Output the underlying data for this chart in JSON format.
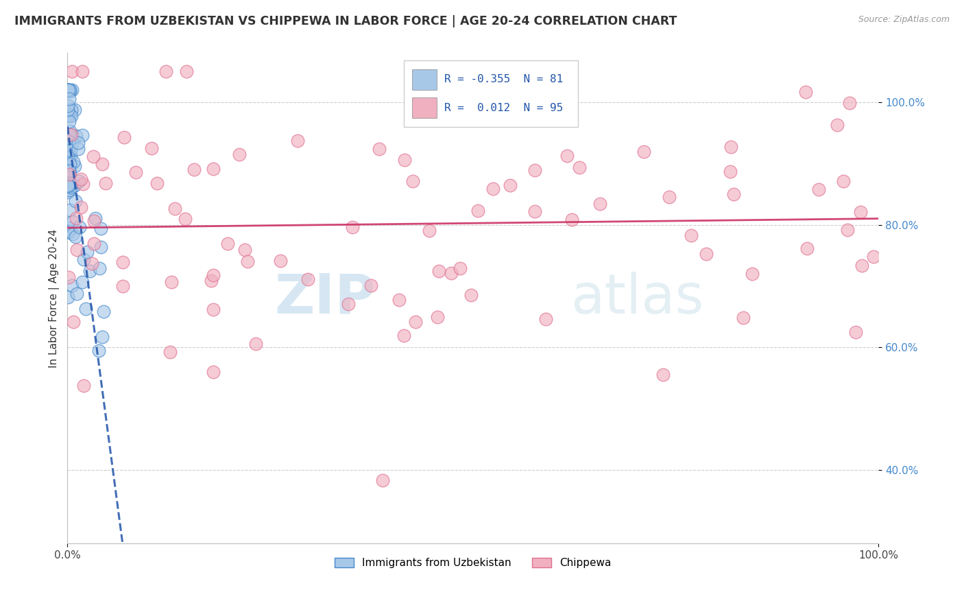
{
  "title": "IMMIGRANTS FROM UZBEKISTAN VS CHIPPEWA IN LABOR FORCE | AGE 20-24 CORRELATION CHART",
  "source": "Source: ZipAtlas.com",
  "ylabel": "In Labor Force | Age 20-24",
  "legend_label1": "Immigrants from Uzbekistan",
  "legend_label2": "Chippewa",
  "R1": -0.355,
  "N1": 81,
  "R2": 0.012,
  "N2": 95,
  "color_blue": "#a8c8e8",
  "color_blue_dark": "#4488cc",
  "color_pink": "#f0b0c0",
  "color_pink_dark": "#e07090",
  "color_trend_blue": "#2255aa",
  "color_trend_pink": "#cc3366",
  "watermark_zip": "#7ab0d8",
  "watermark_atlas": "#a8ccdd",
  "ytick_values": [
    0.4,
    0.6,
    0.8,
    1.0
  ],
  "ytick_labels": [
    "40.0%",
    "60.0%",
    "80.0%",
    "100.0%"
  ]
}
